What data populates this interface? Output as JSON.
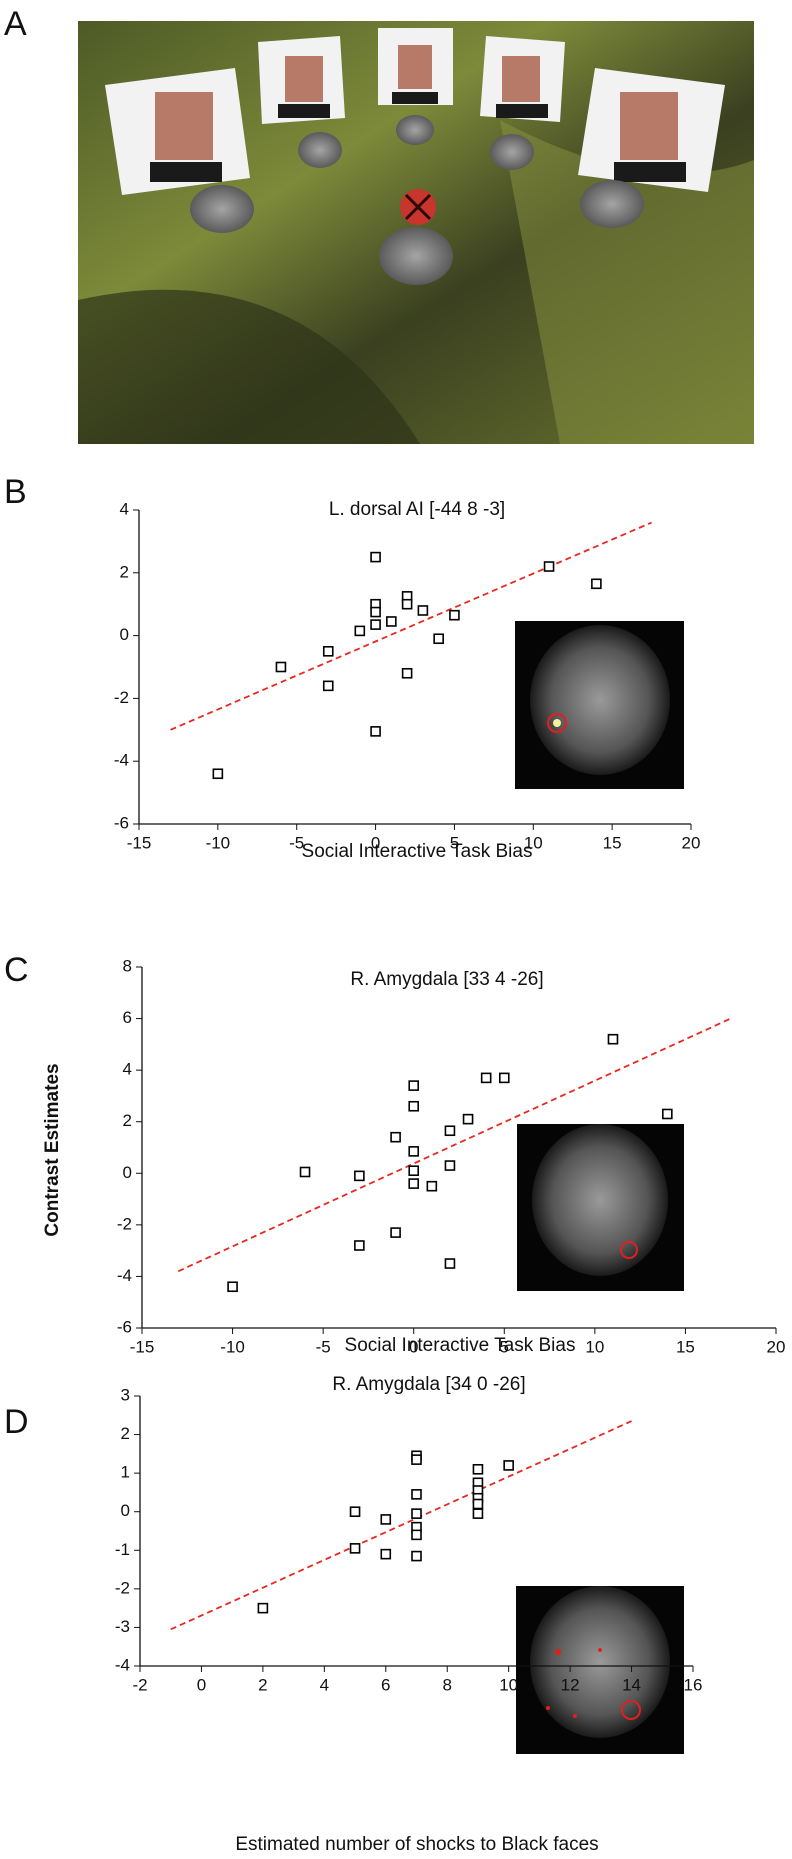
{
  "panel_labels": [
    "A",
    "B",
    "C",
    "D"
  ],
  "chart_data": [
    {
      "type": "scatter",
      "title": "L. dorsal AI [-44 8 -3]",
      "x_label": "Social Interactive Task Bias",
      "x": [
        -10,
        -6,
        -3,
        -3,
        -1,
        0,
        0,
        0,
        0,
        0,
        1,
        2,
        2,
        2,
        3,
        4,
        5,
        11,
        14
      ],
      "values": [
        -4.4,
        -1.0,
        -0.5,
        -1.6,
        0.15,
        2.5,
        1.0,
        0.75,
        0.35,
        -3.05,
        0.45,
        1.25,
        1.0,
        -1.2,
        0.8,
        -0.1,
        0.65,
        2.2,
        1.65
      ],
      "color": "#000000",
      "fit": {
        "x": [
          -13,
          17.5
        ],
        "values": [
          -3.0,
          3.6
        ],
        "color": "#e8281e"
      },
      "xlim": [
        -15,
        20
      ],
      "xticks": [
        -15,
        -10,
        -5,
        0,
        5,
        10,
        15,
        20
      ],
      "ylim": [
        -6,
        4
      ],
      "yticks": [
        -6,
        -4,
        -2,
        0,
        2,
        4
      ]
    },
    {
      "type": "scatter",
      "title": "R. Amygdala [33 4 -26]",
      "x_label": "Social Interactive Task Bias",
      "y_label": "Contrast Estimates",
      "x": [
        -10,
        -6,
        -3,
        -3,
        -1,
        -1,
        0,
        0,
        0,
        0,
        0,
        1,
        2,
        2,
        2,
        3,
        4,
        5,
        11,
        14
      ],
      "values": [
        -4.4,
        0.05,
        -0.1,
        -2.8,
        1.4,
        -2.3,
        3.4,
        2.6,
        0.85,
        0.1,
        -0.4,
        -0.5,
        1.65,
        0.3,
        -3.5,
        2.1,
        3.7,
        3.7,
        5.2,
        2.3
      ],
      "color": "#000000",
      "fit": {
        "x": [
          -13,
          17.5
        ],
        "values": [
          -3.8,
          6.0
        ],
        "color": "#e8281e"
      },
      "xlim": [
        -15,
        20
      ],
      "xticks": [
        -15,
        -10,
        -5,
        0,
        5,
        10,
        15,
        20
      ],
      "ylim": [
        -6,
        8
      ],
      "yticks": [
        -6,
        -4,
        -2,
        0,
        2,
        4,
        6,
        8
      ]
    },
    {
      "type": "scatter",
      "title": "R. Amygdala [34 0 -26]",
      "x_label": "Estimated number of shocks to Black faces",
      "x": [
        2,
        5,
        5,
        6,
        6,
        7,
        7,
        7,
        7,
        7,
        7,
        7,
        9,
        9,
        9,
        9,
        9,
        9,
        10
      ],
      "values": [
        -2.5,
        0,
        -0.95,
        -0.2,
        -1.1,
        1.45,
        1.35,
        0.45,
        -0.05,
        -0.4,
        -0.6,
        -1.15,
        1.1,
        0.75,
        0.55,
        0.35,
        0.2,
        -0.05,
        1.2
      ],
      "color": "#000000",
      "fit": {
        "x": [
          -1,
          14
        ],
        "values": [
          -3.05,
          2.35
        ],
        "color": "#e8281e"
      },
      "xlim": [
        -2,
        16
      ],
      "xticks": [
        -2,
        0,
        2,
        4,
        6,
        8,
        10,
        12,
        14,
        16
      ],
      "ylim": [
        -4,
        3
      ],
      "yticks": [
        -4,
        -3,
        -2,
        -1,
        0,
        1,
        2,
        3
      ]
    }
  ]
}
